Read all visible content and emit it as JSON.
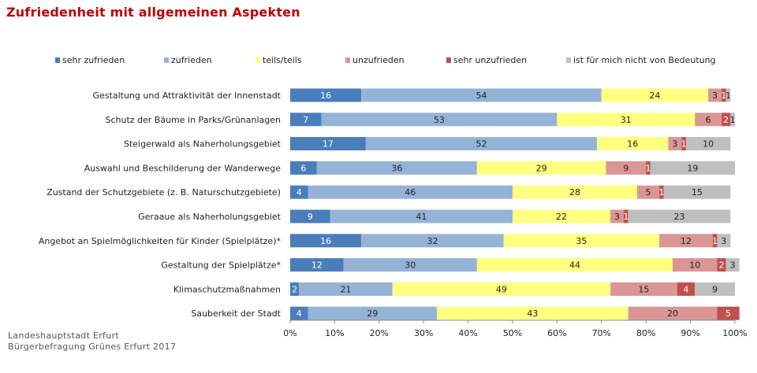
{
  "colors": {
    "title": "#c00000",
    "sehr_zufrieden": "#4a7ebb",
    "zufrieden": "#95b3d7",
    "teils_teils": "#ffff80",
    "unzufrieden": "#da9694",
    "sehr_unzufrieden": "#c0504d",
    "nicht_bedeutung": "#bfbfbf"
  },
  "footer": {
    "line1": "Landeshauptstadt Erfurt",
    "line2": "Bürgerbefragung Grünes Erfurt 2017"
  },
  "chart_data": {
    "type": "bar",
    "orientation": "horizontal",
    "stacked": "100%",
    "title": "Zufriedenheit mit allgemeinen Aspekten",
    "legend_position": "top",
    "grid": false,
    "xlim": [
      0,
      100
    ],
    "x_ticks": [
      "0%",
      "10%",
      "20%",
      "30%",
      "40%",
      "50%",
      "60%",
      "70%",
      "80%",
      "90%",
      "100%"
    ],
    "categories": [
      "Gestaltung und Attraktivität der Innenstadt",
      "Schutz der Bäume in Parks/Grünanlagen",
      "Steigerwald als Naherholungsgebiet",
      "Auswahl und Beschilderung der Wanderwege",
      "Zustand der Schutzgebiete (z. B. Naturschutzgebiete)",
      "Geraaue als Naherholungsgebiet",
      "Angebot an Spielmöglichkeiten für Kinder (Spielplätze)*",
      "Gestaltung der Spielplätze*",
      "Klimaschutzmaßnahmen",
      "Sauberkeit der Stadt"
    ],
    "series": [
      {
        "name": "sehr zufrieden",
        "color": "#4a7ebb",
        "values": [
          16,
          7,
          17,
          6,
          4,
          9,
          16,
          12,
          2,
          4
        ]
      },
      {
        "name": "zufrieden",
        "color": "#95b3d7",
        "values": [
          54,
          53,
          52,
          36,
          46,
          41,
          32,
          30,
          21,
          29
        ]
      },
      {
        "name": "teils/teils",
        "color": "#ffff80",
        "values": [
          24,
          31,
          16,
          29,
          28,
          22,
          35,
          44,
          49,
          43
        ]
      },
      {
        "name": "unzufrieden",
        "color": "#da9694",
        "values": [
          3,
          6,
          3,
          9,
          5,
          3,
          12,
          10,
          15,
          20
        ]
      },
      {
        "name": "sehr unzufrieden",
        "color": "#c0504d",
        "values": [
          1,
          2,
          1,
          1,
          1,
          1,
          1,
          2,
          4,
          5
        ]
      },
      {
        "name": "ist für mich nicht von Bedeutung",
        "color": "#bfbfbf",
        "values": [
          1,
          1,
          10,
          19,
          15,
          23,
          3,
          3,
          9,
          null
        ]
      }
    ]
  }
}
